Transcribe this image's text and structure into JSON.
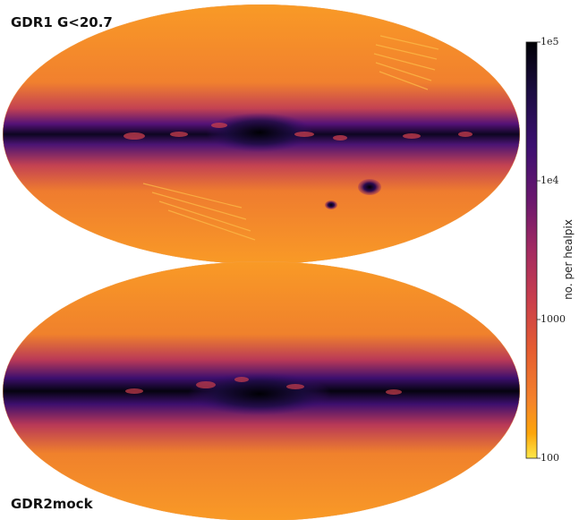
{
  "panels": {
    "top": {
      "label": "GDR1 G<20.7"
    },
    "bottom": {
      "label": "GDR2mock"
    }
  },
  "colorbar": {
    "label": "no. per healpix",
    "ticks": [
      "1e5",
      "1e4",
      "1000",
      "100"
    ],
    "scale": "log",
    "colormap": [
      "#fce84a",
      "#fca50a",
      "#f4822b",
      "#e55c30",
      "#c93e4c",
      "#a32a61",
      "#6a176e",
      "#3b0f70",
      "#1b0c41",
      "#000004"
    ]
  },
  "colors": {
    "sky_background": "#f4902a",
    "galactic_plane": "#1b0c41",
    "dust_lane_patches": "#c93e4c",
    "magellanic_clouds": "#2a0a50"
  }
}
